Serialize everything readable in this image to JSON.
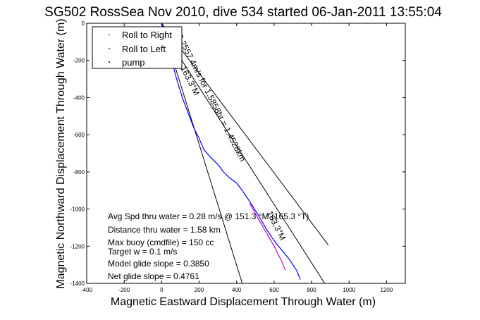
{
  "chart_data": {
    "type": "line",
    "title": "SG502 RossSea Nov 2010, dive 534 started 06-Jan-2011 13:55:04",
    "xlabel": "Magnetic Eastward Displacement Through Water (m)",
    "ylabel": "Magnetic Northward Displacement Through Water (m)",
    "xlim": [
      -400,
      1300
    ],
    "ylim": [
      -1400,
      0
    ],
    "xticks": [
      -400,
      -200,
      0,
      200,
      400,
      600,
      800,
      1000,
      1200
    ],
    "yticks": [
      -1400,
      -1200,
      -1000,
      -800,
      -600,
      -400,
      -200,
      0
    ],
    "grid": false,
    "legend": {
      "placement": "top-left",
      "entries": [
        {
          "label": "Roll to Right",
          "color": "#00a000"
        },
        {
          "label": "Roll to Left",
          "color": "#d00000"
        },
        {
          "label": "pump",
          "color": "#000000"
        }
      ]
    },
    "series": [
      {
        "name": "track",
        "color": "#0000ff",
        "x": [
          0,
          40,
          80,
          110,
          140,
          170,
          200,
          225,
          260,
          300,
          330,
          360,
          400,
          430,
          470,
          520,
          560,
          600,
          640,
          680,
          720,
          740
        ],
        "y": [
          0,
          -150,
          -300,
          -400,
          -480,
          -560,
          -620,
          -680,
          -720,
          -760,
          -800,
          -830,
          -860,
          -900,
          -960,
          -1040,
          -1110,
          -1170,
          -1220,
          -1270,
          -1330,
          -1380
        ]
      },
      {
        "name": "Roll to Left",
        "color": "#cc00cc",
        "x": [
          470,
          520,
          560,
          600,
          640,
          660
        ],
        "y": [
          -970,
          -1060,
          -1130,
          -1200,
          -1280,
          -1330
        ]
      }
    ],
    "reference_lines": [
      {
        "x": [
          0,
          890
        ],
        "y": [
          0,
          -1195
        ]
      },
      {
        "x": [
          0,
          430
        ],
        "y": [
          0,
          -1400
        ]
      },
      {
        "x": [
          0,
          870
        ],
        "y": [
          -30,
          -1400
        ]
      }
    ],
    "annotations": [
      {
        "text": "0.2557 4m/s for 1.5858hr = 1.4528km",
        "x": 80,
        "y": -70,
        "angle": 63
      },
      {
        "text": "163.3°M",
        "x": 560,
        "y": -1020,
        "angle": 63
      },
      {
        "text": "163.3°M",
        "x": 100,
        "y": -240,
        "angle": 63
      }
    ],
    "stats": [
      "Avg Spd thru water =  0.28 m/s @ 151.3    °M (165.3 °T)",
      "Distance thru water =  1.58 km",
      "Max buoy (cmdfile) = 150 cc",
      "Target w = 0.1 m/s",
      "Model glide slope = 0.3850",
      "Net glide slope = 0.4761"
    ]
  }
}
